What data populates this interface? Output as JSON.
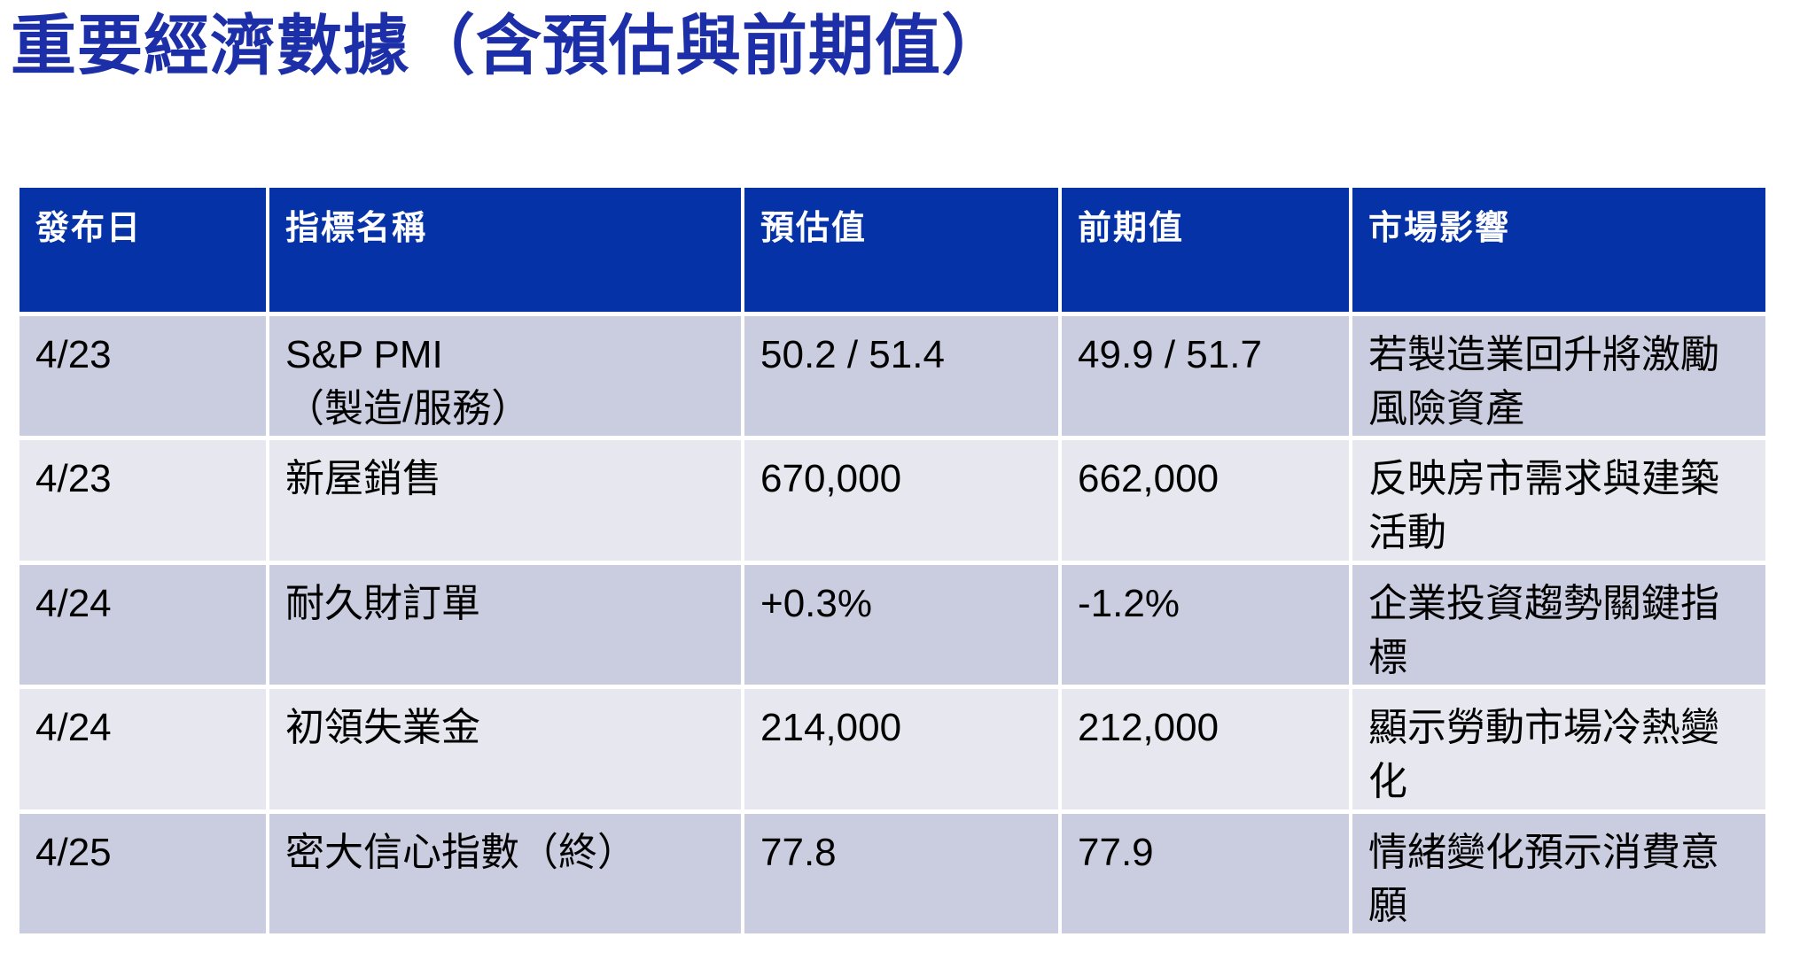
{
  "page": {
    "title": "重要經濟數據（含預估與前期值）"
  },
  "colors": {
    "title_text": "#1C2FA8",
    "header_bg": "#0632A8",
    "header_text": "#FFFFFF",
    "row_odd_bg": "#CACCE0",
    "row_even_bg": "#E7E7F0",
    "cell_text": "#000000",
    "separator": "#FFFFFF"
  },
  "table": {
    "columns": [
      {
        "key": "date",
        "label": "發布日"
      },
      {
        "key": "indicator",
        "label": "指標名稱"
      },
      {
        "key": "estimate",
        "label": "預估值"
      },
      {
        "key": "previous",
        "label": "前期值"
      },
      {
        "key": "impact",
        "label": "市場影響"
      }
    ],
    "rows": [
      {
        "date": "4/23",
        "indicator": "S&P PMI\n（製造/服務）",
        "estimate": "50.2 / 51.4",
        "previous": "49.9 / 51.7",
        "impact": "若製造業回升將激勵風險資產"
      },
      {
        "date": "4/23",
        "indicator": "新屋銷售",
        "estimate": "670,000",
        "previous": "662,000",
        "impact": "反映房市需求與建築活動"
      },
      {
        "date": "4/24",
        "indicator": "耐久財訂單",
        "estimate": "+0.3%",
        "previous": "-1.2%",
        "impact": "企業投資趨勢關鍵指標"
      },
      {
        "date": "4/24",
        "indicator": "初領失業金",
        "estimate": "214,000",
        "previous": "212,000",
        "impact": "顯示勞動市場冷熱變化"
      },
      {
        "date": "4/25",
        "indicator": "密大信心指數（終）",
        "estimate": "77.8",
        "previous": "77.9",
        "impact": "情緒變化預示消費意願"
      }
    ]
  }
}
